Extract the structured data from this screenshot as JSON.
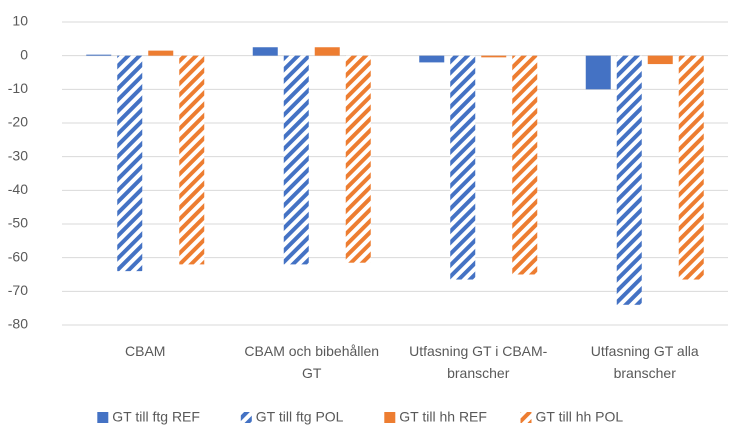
{
  "chart_data": {
    "type": "bar",
    "categories": [
      [
        "CBAM"
      ],
      [
        "CBAM och bibehållen",
        "GT"
      ],
      [
        "Utfasning GT i CBAM-",
        "branscher"
      ],
      [
        "Utfasning GT alla",
        "branscher"
      ]
    ],
    "series": [
      {
        "name": "GT till ftg REF",
        "color": "#4472c4",
        "hatch": false,
        "values": [
          0.3,
          2.5,
          -2,
          -10
        ]
      },
      {
        "name": "GT till ftg POL",
        "color": "#4472c4",
        "hatch": true,
        "values": [
          -64,
          -62,
          -66.5,
          -74
        ]
      },
      {
        "name": "GT till hh REF",
        "color": "#ed7d31",
        "hatch": false,
        "values": [
          1.5,
          2.5,
          -0.5,
          -2.5
        ]
      },
      {
        "name": "GT till hh POL",
        "color": "#ed7d31",
        "hatch": true,
        "values": [
          -62,
          -61.5,
          -65,
          -66.5
        ]
      }
    ],
    "ylim": [
      -80,
      10
    ],
    "yticks": [
      -80,
      -70,
      -60,
      -50,
      -40,
      -30,
      -20,
      -10,
      0,
      10
    ],
    "grid": true,
    "legend": "bottom"
  }
}
